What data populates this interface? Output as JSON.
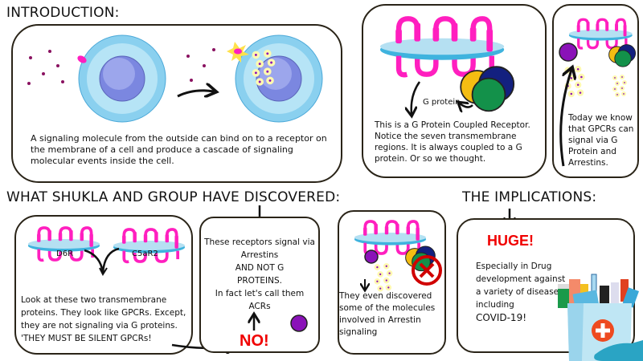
{
  "sections": {
    "introduction": "INTRODUCTION:",
    "discovered": "WHAT SHUKLA AND GROUP HAVE DISCOVERED:",
    "implications": "THE IMPLICATIONS:"
  },
  "panels": {
    "intro": {
      "text": "A signaling molecule from the outside can bind on to a receptor on the membrane of a cell and produce a cascade of signaling molecular events inside the cell."
    },
    "gpcr": {
      "g_protein_label": "G protein.",
      "text": "This is a G Protein Coupled Receptor. Notice the seven transmembrane regions. It is always coupled to a G protein. Or so we thought."
    },
    "today": {
      "text": "Today we know that GPCRs can signal via G Protein and Arrestins."
    },
    "silent": {
      "label_left": "D6R",
      "label_right": "C5aR2",
      "text": "Look at these two transmembrane proteins. They look like GPCRs. Except, they are not signaling via G proteins. 'THEY MUST BE SILENT GPCRs!"
    },
    "acrs": {
      "text_lines": [
        "These receptors signal via",
        "Arrestins",
        "AND NOT G",
        "PROTEINS.",
        "In fact let's call them",
        "ACRs"
      ],
      "no": "NO!"
    },
    "molecules": {
      "text": "They even discovered some of the molecules involved in Arrestin signaling"
    },
    "huge": {
      "title": "HUGE!",
      "text_lines": [
        "Especially in Drug",
        "development against",
        "a variety of diseases",
        "including",
        "COVID-19!"
      ]
    }
  },
  "colors": {
    "receptor": "#ff1fbf",
    "membrane": "#b5e0f2",
    "membrane_dark": "#3fb3de",
    "arrestin": "#8a12b8",
    "g_yellow": "#f4bd12",
    "g_navy": "#13207f",
    "g_green": "#13914a",
    "cell": "#8ad0ef",
    "nucleus": "#7b87e0",
    "alert": "#f00000"
  }
}
